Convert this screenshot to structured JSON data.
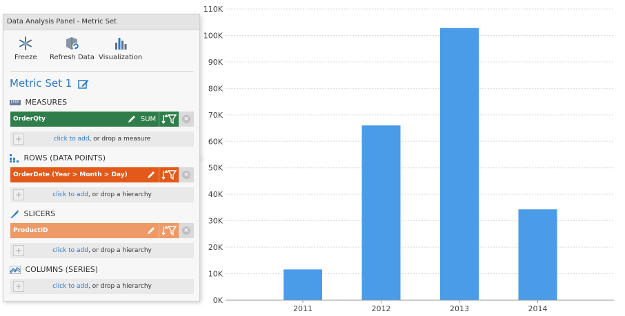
{
  "panel": {
    "title": "Data Analysis Panel - Metric Set",
    "toolbar": {
      "freeze_label": "Freeze",
      "refresh_label": "Refresh Data",
      "visualization_label": "Visualization"
    },
    "metric_set_title": "Metric Set 1",
    "sections": {
      "measures": {
        "header": "MEASURES",
        "field": {
          "name": "OrderQty",
          "aggregation": "SUM",
          "color": "#2e7d4a"
        },
        "drop_link": "click to add",
        "drop_rest": ", or drop a measure"
      },
      "rows": {
        "header": "ROWS (DATA POINTS)",
        "field": {
          "name": "OrderDate (Year > Month > Day)",
          "color": "#e2591a"
        },
        "drop_link": "click to add",
        "drop_rest": ", or drop a hierarchy"
      },
      "slicers": {
        "header": "SLICERS",
        "field": {
          "name": "ProductID",
          "color": "#ee9a66"
        },
        "drop_link": "click to add",
        "drop_rest": ", or drop a hierarchy"
      },
      "columns": {
        "header": "COLUMNS (SERIES)",
        "drop_link": "click to add",
        "drop_rest": ", or drop a hierarchy"
      }
    }
  },
  "chart_data": {
    "type": "bar",
    "categories": [
      "2011",
      "2012",
      "2013",
      "2014"
    ],
    "values": [
      11600,
      66000,
      102800,
      34300
    ],
    "ylim": [
      0,
      110000
    ],
    "yticks": [
      0,
      10000,
      20000,
      30000,
      40000,
      50000,
      60000,
      70000,
      80000,
      90000,
      100000,
      110000
    ],
    "ytick_labels": [
      "0K",
      "10K",
      "20K",
      "30K",
      "40K",
      "50K",
      "60K",
      "70K",
      "80K",
      "90K",
      "100K",
      "110K"
    ],
    "bar_color": "#4a9be8",
    "grid": true
  }
}
